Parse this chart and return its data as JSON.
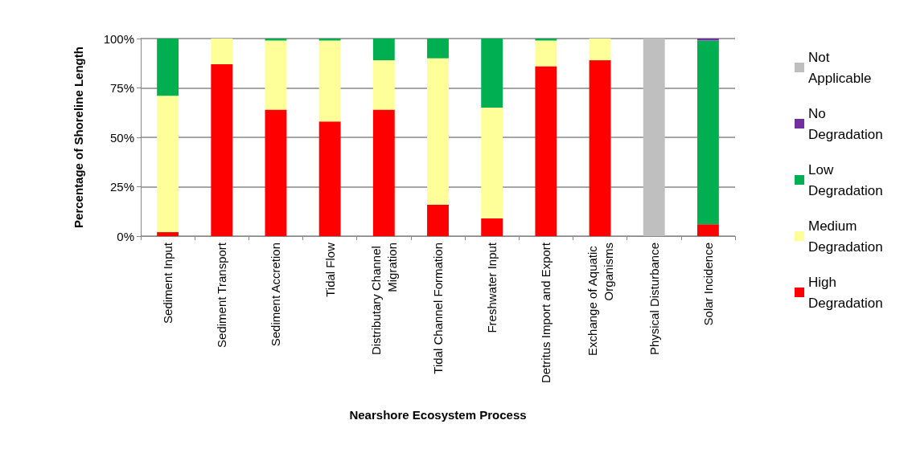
{
  "chart_data": {
    "type": "bar",
    "stacked": true,
    "xlabel": "Nearshore Ecosystem Process",
    "ylabel": "Percentage of Shoreline Length",
    "categories": [
      "Sediment Input",
      "Sediment Transport",
      "Sediment Accretion",
      "Tidal Flow",
      "Distributary Channel Migration",
      "Tidal Channel Formation",
      "Freshwater Input",
      "Detritus Import and Export",
      "Exchange of Aquatic Organisms",
      "Physical Disturbance",
      "Solar Incidence"
    ],
    "series": [
      {
        "name": "High Degradation",
        "color": "#ff0000",
        "values": [
          2,
          87,
          64,
          58,
          64,
          16,
          9,
          86,
          89,
          0,
          6
        ]
      },
      {
        "name": "Medium Degradation",
        "color": "#ffff99",
        "values": [
          69,
          13,
          35,
          41,
          25,
          74,
          56,
          13,
          11,
          0,
          0
        ]
      },
      {
        "name": "Low Degradation",
        "color": "#00b050",
        "values": [
          29,
          0,
          1,
          1,
          11,
          10,
          35,
          1,
          0,
          0,
          93
        ]
      },
      {
        "name": "No Degradation",
        "color": "#7030a0",
        "values": [
          0,
          0,
          0,
          0,
          0,
          0,
          0,
          0,
          0,
          0,
          1
        ]
      },
      {
        "name": "Not Applicable",
        "color": "#bfbfbf",
        "values": [
          0,
          0,
          0,
          0,
          0,
          0,
          0,
          0,
          0,
          100,
          0
        ]
      }
    ],
    "ylim": [
      0,
      100
    ],
    "yticks": [
      {
        "value": 0,
        "label": "0%"
      },
      {
        "value": 25,
        "label": "25%"
      },
      {
        "value": 50,
        "label": "50%"
      },
      {
        "value": 75,
        "label": "75%"
      },
      {
        "value": 100,
        "label": "100%"
      }
    ],
    "grid": "y",
    "legend": "right"
  }
}
